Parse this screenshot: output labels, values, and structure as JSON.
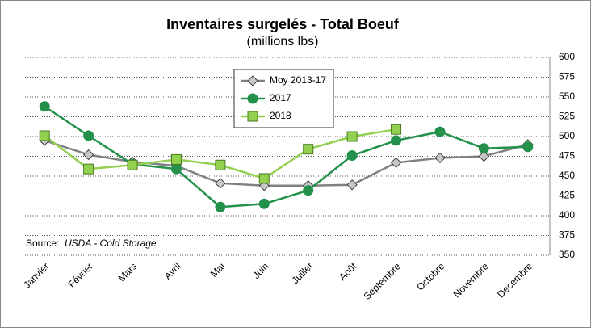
{
  "chart_data": {
    "type": "line",
    "title": "Inventaires surgelés - Total Boeuf",
    "subtitle": "(millions lbs)",
    "source_label": "Source:",
    "source": "USDA - Cold Storage",
    "categories": [
      "Janvier",
      "Février",
      "Mars",
      "Avril",
      "Mai",
      "Juin",
      "Juillet",
      "Août",
      "Septembre",
      "Octobre",
      "Novembre",
      "Decembre"
    ],
    "series": [
      {
        "name": "Moy 2013-17",
        "color": "#808080",
        "marker": "diamond",
        "marker_fill": "#c8c8c8",
        "values": [
          495,
          477,
          468,
          463,
          441,
          438,
          438,
          439,
          467,
          473,
          475,
          490
        ]
      },
      {
        "name": "2017",
        "color": "#23914b",
        "marker": "circle",
        "marker_fill": "#23914b",
        "values": [
          538,
          501,
          465,
          459,
          411,
          415,
          432,
          476,
          495,
          506,
          485,
          487
        ]
      },
      {
        "name": "2018",
        "color": "#92d050",
        "marker": "square",
        "marker_fill": "#92d050",
        "values": [
          501,
          459,
          464,
          471,
          464,
          447,
          484,
          500,
          509,
          null,
          null,
          null
        ]
      }
    ],
    "ylim": [
      350,
      600
    ],
    "yticks": [
      350,
      375,
      400,
      425,
      450,
      475,
      500,
      525,
      550,
      575,
      600
    ],
    "grid": true,
    "legend": "top"
  }
}
